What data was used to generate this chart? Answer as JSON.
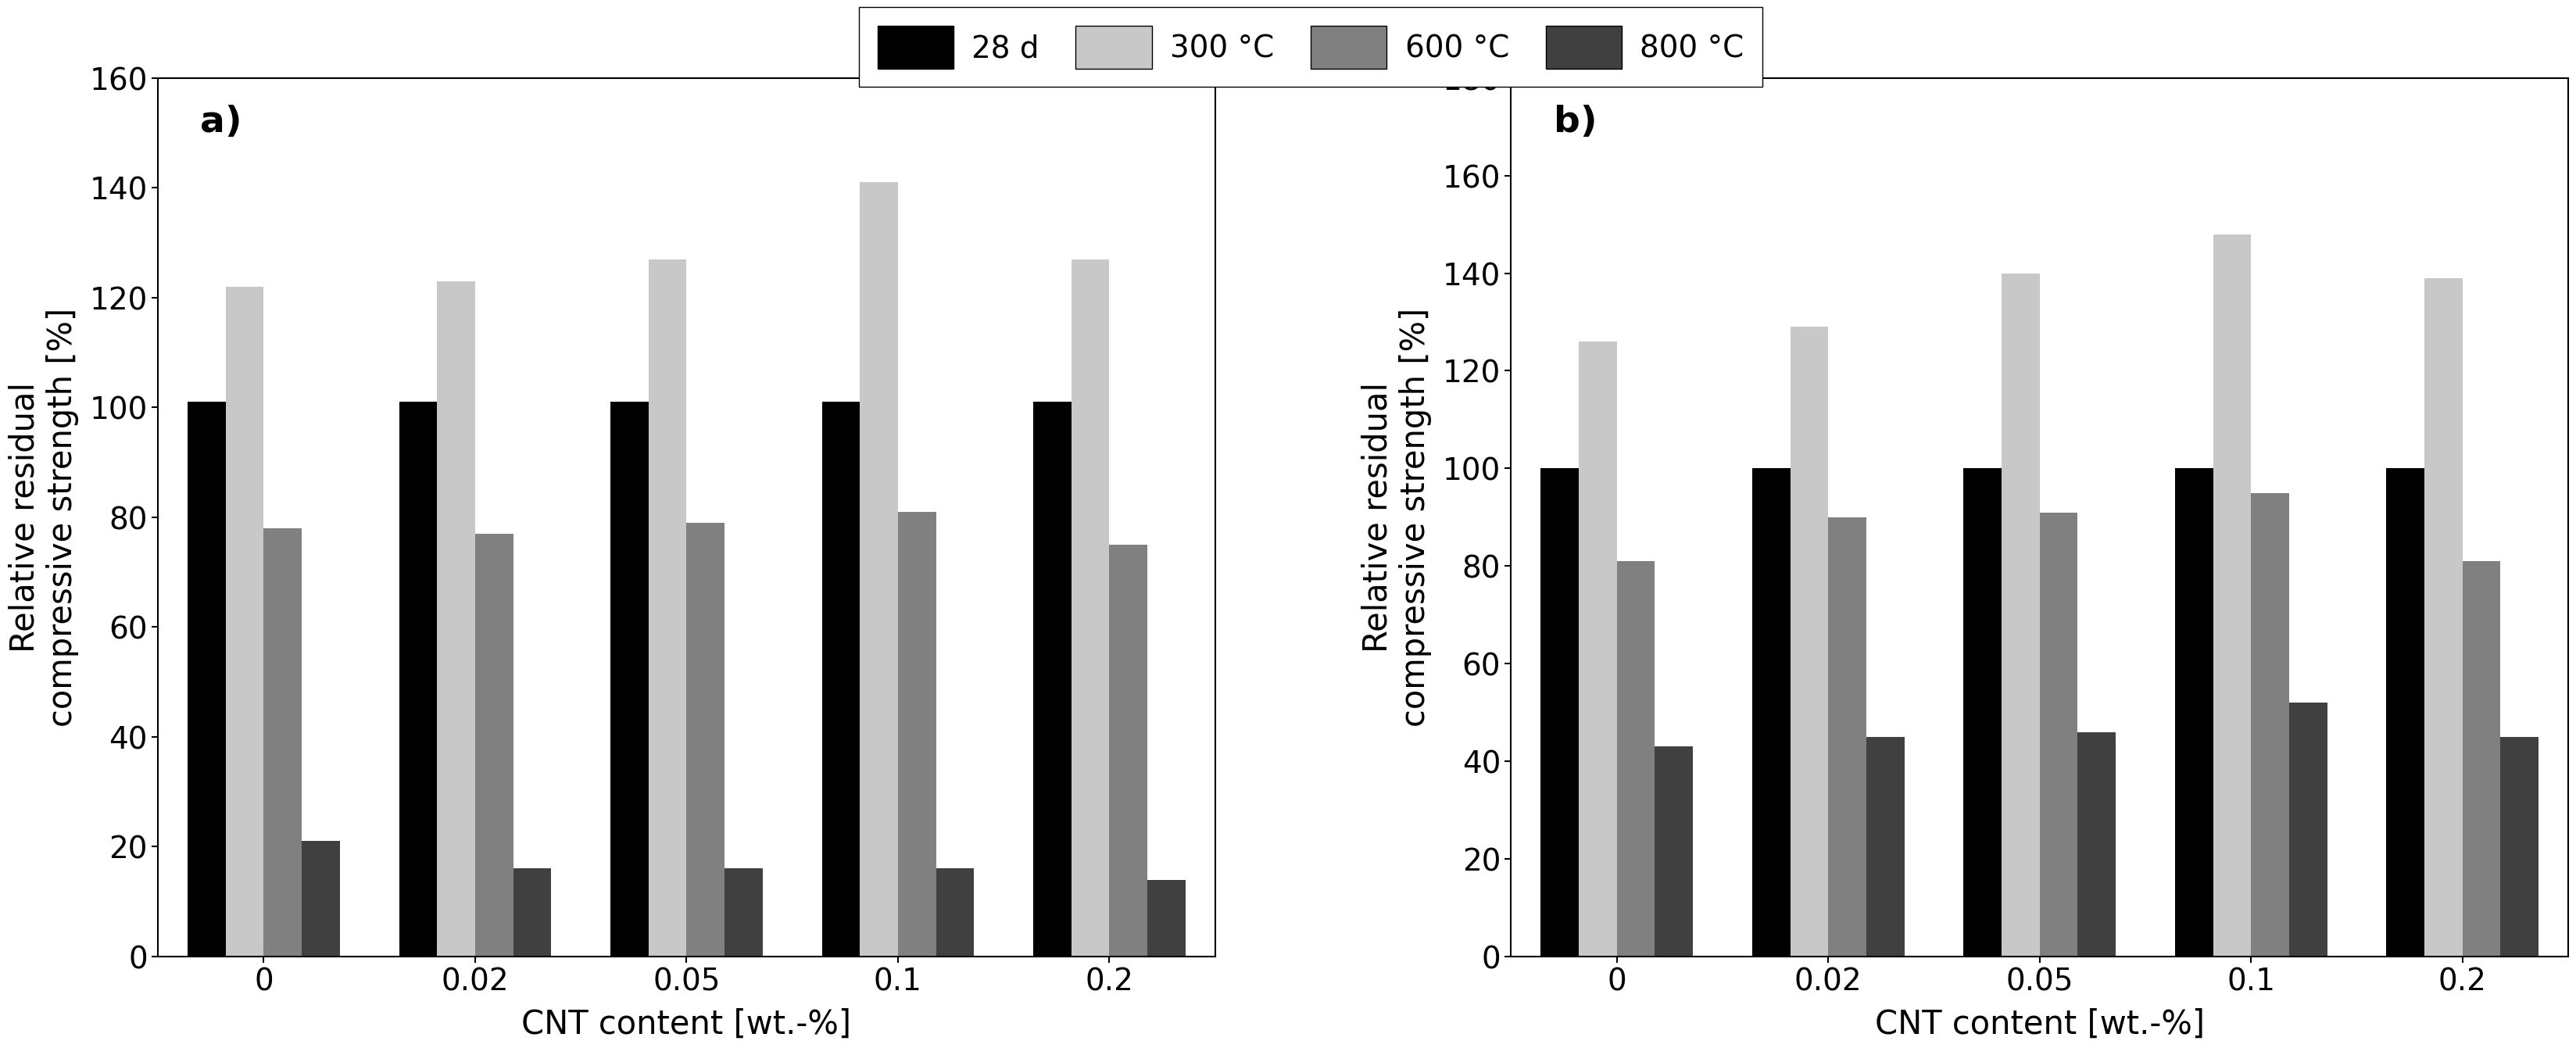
{
  "legend_labels": [
    "28 d",
    "300 °C",
    "600 °C",
    "800 °C"
  ],
  "legend_colors": [
    "#000000",
    "#c8c8c8",
    "#808080",
    "#404040"
  ],
  "categories": [
    "0",
    "0.02",
    "0.05",
    "0.1",
    "0.2"
  ],
  "xlabel": "CNT content [wt.-%]",
  "ylabel": "Relative residual\ncompressive strength [%]",
  "panel_a": {
    "label": "a)",
    "ylim": [
      0,
      160
    ],
    "yticks": [
      0,
      20,
      40,
      60,
      80,
      100,
      120,
      140,
      160
    ],
    "data": {
      "28d": [
        101,
        101,
        101,
        101,
        101
      ],
      "300": [
        122,
        123,
        127,
        141,
        127
      ],
      "600": [
        78,
        77,
        79,
        81,
        75
      ],
      "800": [
        21,
        16,
        16,
        16,
        14
      ]
    }
  },
  "panel_b": {
    "label": "b)",
    "ylim": [
      0,
      180
    ],
    "yticks": [
      0,
      20,
      40,
      60,
      80,
      100,
      120,
      140,
      160,
      180
    ],
    "data": {
      "28d": [
        100,
        100,
        100,
        100,
        100
      ],
      "300": [
        126,
        129,
        140,
        148,
        139
      ],
      "600": [
        81,
        90,
        91,
        95,
        81
      ],
      "800": [
        43,
        45,
        46,
        52,
        45
      ]
    }
  },
  "bar_colors": [
    "#000000",
    "#c8c8c8",
    "#808080",
    "#404040"
  ],
  "bar_width": 0.18,
  "figsize_inches": [
    33.52,
    13.71
  ],
  "dpi": 100
}
